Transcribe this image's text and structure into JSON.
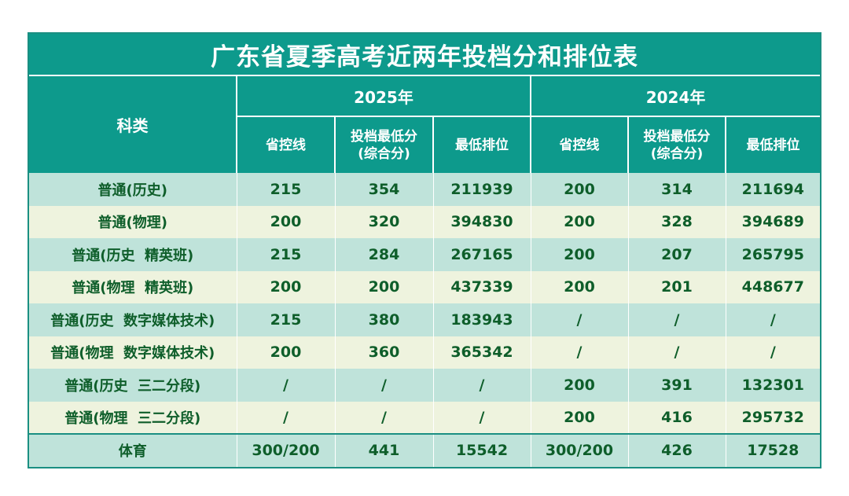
{
  "title": "广东省夏季高考近两年投档分和排位表",
  "subject_header": "科类",
  "years": [
    "2025年",
    "2024年"
  ],
  "sub_headers": [
    {
      "line1": "省控线",
      "line2": ""
    },
    {
      "line1": "投档最低分",
      "line2": "(综合分)"
    },
    {
      "line1": "最低排位",
      "line2": ""
    }
  ],
  "rows": [
    {
      "subject": "普通(历史)",
      "v": [
        "215",
        "354",
        "211939",
        "200",
        "314",
        "211694"
      ]
    },
    {
      "subject": "普通(物理)",
      "v": [
        "200",
        "320",
        "394830",
        "200",
        "328",
        "394689"
      ]
    },
    {
      "subject": "普通(历史  精英班)",
      "v": [
        "215",
        "284",
        "267165",
        "200",
        "207",
        "265795"
      ]
    },
    {
      "subject": "普通(物理  精英班)",
      "v": [
        "200",
        "200",
        "437339",
        "200",
        "201",
        "448677"
      ]
    },
    {
      "subject": "普通(历史  数字媒体技术)",
      "v": [
        "215",
        "380",
        "183943",
        "/",
        "/",
        "/"
      ]
    },
    {
      "subject": "普通(物理  数字媒体技术)",
      "v": [
        "200",
        "360",
        "365342",
        "/",
        "/",
        "/"
      ]
    },
    {
      "subject": "普通(历史  三二分段)",
      "v": [
        "/",
        "/",
        "/",
        "200",
        "391",
        "132301"
      ]
    },
    {
      "subject": "普通(物理  三二分段)",
      "v": [
        "/",
        "/",
        "/",
        "200",
        "416",
        "295732"
      ]
    },
    {
      "subject": "体育",
      "v": [
        "300/200",
        "441",
        "15542",
        "300/200",
        "426",
        "17528"
      ]
    }
  ],
  "colors": {
    "header_teal": "#0d9a8c",
    "row_teal": "#bfe3da",
    "row_cream": "#eef3de",
    "value_text": "#0e5e2a"
  }
}
